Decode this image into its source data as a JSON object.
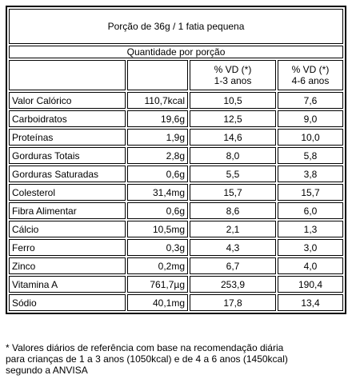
{
  "header": {
    "serving": "Porção de 36g / 1 fatia pequena",
    "quantity": "Quantidade por porção",
    "columns": [
      [
        "% VD (*)",
        "1-3 anos"
      ],
      [
        "% VD (*)",
        "4-6 anos"
      ]
    ]
  },
  "table": {
    "rows": [
      [
        "Valor Calórico",
        "110,7kcal",
        "10,5",
        "7,6"
      ],
      [
        "Carboidratos",
        "19,6g",
        "12,5",
        "9,0"
      ],
      [
        "Proteínas",
        "1,9g",
        "14,6",
        "10,0"
      ],
      [
        "Gorduras Totais",
        "2,8g",
        "8,0",
        "5,8"
      ],
      [
        "Gorduras Saturadas",
        "0,6g",
        "5,5",
        "3,8"
      ],
      [
        "Colesterol",
        "31,4mg",
        "15,7",
        "15,7"
      ],
      [
        "Fibra Alimentar",
        "0,6g",
        "8,6",
        "6,0"
      ],
      [
        "Cálcio",
        "10,5mg",
        "2,1",
        "1,3"
      ],
      [
        "Ferro",
        "0,3g",
        "4,3",
        "3,0"
      ],
      [
        "Zinco",
        "0,2mg",
        "6,7",
        "4,0"
      ],
      [
        "Vitamina A",
        "761,7µg",
        "253,9",
        "190,4"
      ],
      [
        "Sódio",
        "40,1mg",
        "17,8",
        "13,4"
      ]
    ]
  },
  "footnote": [
    "* Valores diários de referência com base na recomendação diária",
    "para crianças de 1 a 3 anos (1050kcal) e de 4 a 6 anos (1450kcal)",
    "segundo a ANVISA"
  ]
}
